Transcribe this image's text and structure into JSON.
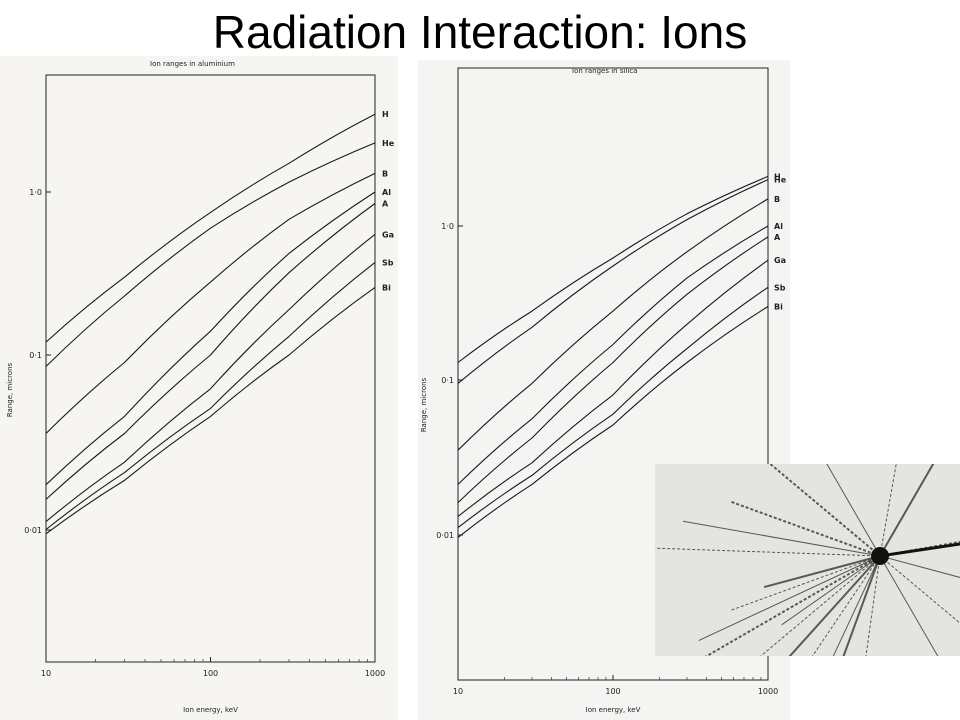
{
  "title": "Radiation Interaction:  Ions",
  "chart_data": [
    {
      "type": "line",
      "title": "Ion ranges in aluminium",
      "xlabel": "Ion energy, keV",
      "ylabel": "Range, microns",
      "xscale": "log",
      "yscale": "log",
      "xlim": [
        10,
        1000
      ],
      "ylim": [
        0.001,
        3
      ],
      "xticks": [
        "10",
        "100",
        "1000"
      ],
      "yticks": [
        "0·01",
        "0·1",
        "1·0"
      ],
      "series": [
        {
          "name": "H",
          "x": [
            10,
            30,
            100,
            300,
            1000
          ],
          "y": [
            0.12,
            0.3,
            0.75,
            1.5,
            3.0
          ]
        },
        {
          "name": "He",
          "x": [
            10,
            30,
            100,
            300,
            1000
          ],
          "y": [
            0.085,
            0.23,
            0.6,
            1.15,
            2.0
          ]
        },
        {
          "name": "B",
          "x": [
            10,
            30,
            100,
            300,
            1000
          ],
          "y": [
            0.033,
            0.09,
            0.28,
            0.68,
            1.3
          ]
        },
        {
          "name": "Al",
          "x": [
            10,
            30,
            100,
            300,
            1000
          ],
          "y": [
            0.016,
            0.042,
            0.14,
            0.42,
            1.0
          ]
        },
        {
          "name": "A",
          "x": [
            10,
            30,
            100,
            300,
            1000
          ],
          "y": [
            0.013,
            0.033,
            0.1,
            0.32,
            0.85
          ]
        },
        {
          "name": "Ga",
          "x": [
            10,
            30,
            100,
            300,
            1000
          ],
          "y": [
            0.0095,
            0.022,
            0.062,
            0.19,
            0.55
          ]
        },
        {
          "name": "Sb",
          "x": [
            10,
            30,
            100,
            300,
            1000
          ],
          "y": [
            0.0085,
            0.019,
            0.047,
            0.13,
            0.37
          ]
        },
        {
          "name": "Bi",
          "x": [
            10,
            30,
            100,
            300,
            1000
          ],
          "y": [
            0.008,
            0.017,
            0.042,
            0.1,
            0.26
          ]
        }
      ]
    },
    {
      "type": "line",
      "title": "Ion ranges in silica",
      "xlabel": "Ion energy, keV",
      "ylabel": "Range, microns",
      "xscale": "log",
      "yscale": "log",
      "xlim": [
        10,
        1000
      ],
      "ylim": [
        0.001,
        4
      ],
      "xticks": [
        "10",
        "100",
        "1000"
      ],
      "yticks": [
        "0·01",
        "0·1",
        "1·0"
      ],
      "series": [
        {
          "name": "H",
          "x": [
            10,
            30,
            100,
            300,
            1000
          ],
          "y": [
            0.13,
            0.28,
            0.62,
            1.2,
            2.1
          ]
        },
        {
          "name": "He",
          "x": [
            10,
            30,
            100,
            300,
            1000
          ],
          "y": [
            0.095,
            0.22,
            0.55,
            1.1,
            2.0
          ]
        },
        {
          "name": "B",
          "x": [
            10,
            30,
            100,
            300,
            1000
          ],
          "y": [
            0.035,
            0.095,
            0.28,
            0.68,
            1.5
          ]
        },
        {
          "name": "Al",
          "x": [
            10,
            30,
            100,
            300,
            1000
          ],
          "y": [
            0.021,
            0.056,
            0.17,
            0.46,
            1.0
          ]
        },
        {
          "name": "A",
          "x": [
            10,
            30,
            100,
            300,
            1000
          ],
          "y": [
            0.016,
            0.042,
            0.13,
            0.36,
            0.85
          ]
        },
        {
          "name": "Ga",
          "x": [
            10,
            30,
            100,
            300,
            1000
          ],
          "y": [
            0.013,
            0.029,
            0.08,
            0.23,
            0.6
          ]
        },
        {
          "name": "Sb",
          "x": [
            10,
            30,
            100,
            300,
            1000
          ],
          "y": [
            0.011,
            0.024,
            0.06,
            0.16,
            0.4
          ]
        },
        {
          "name": "Bi",
          "x": [
            10,
            30,
            100,
            300,
            1000
          ],
          "y": [
            0.0095,
            0.021,
            0.051,
            0.13,
            0.3
          ]
        }
      ]
    }
  ],
  "photo": {
    "icon": "particle-track-photo"
  }
}
